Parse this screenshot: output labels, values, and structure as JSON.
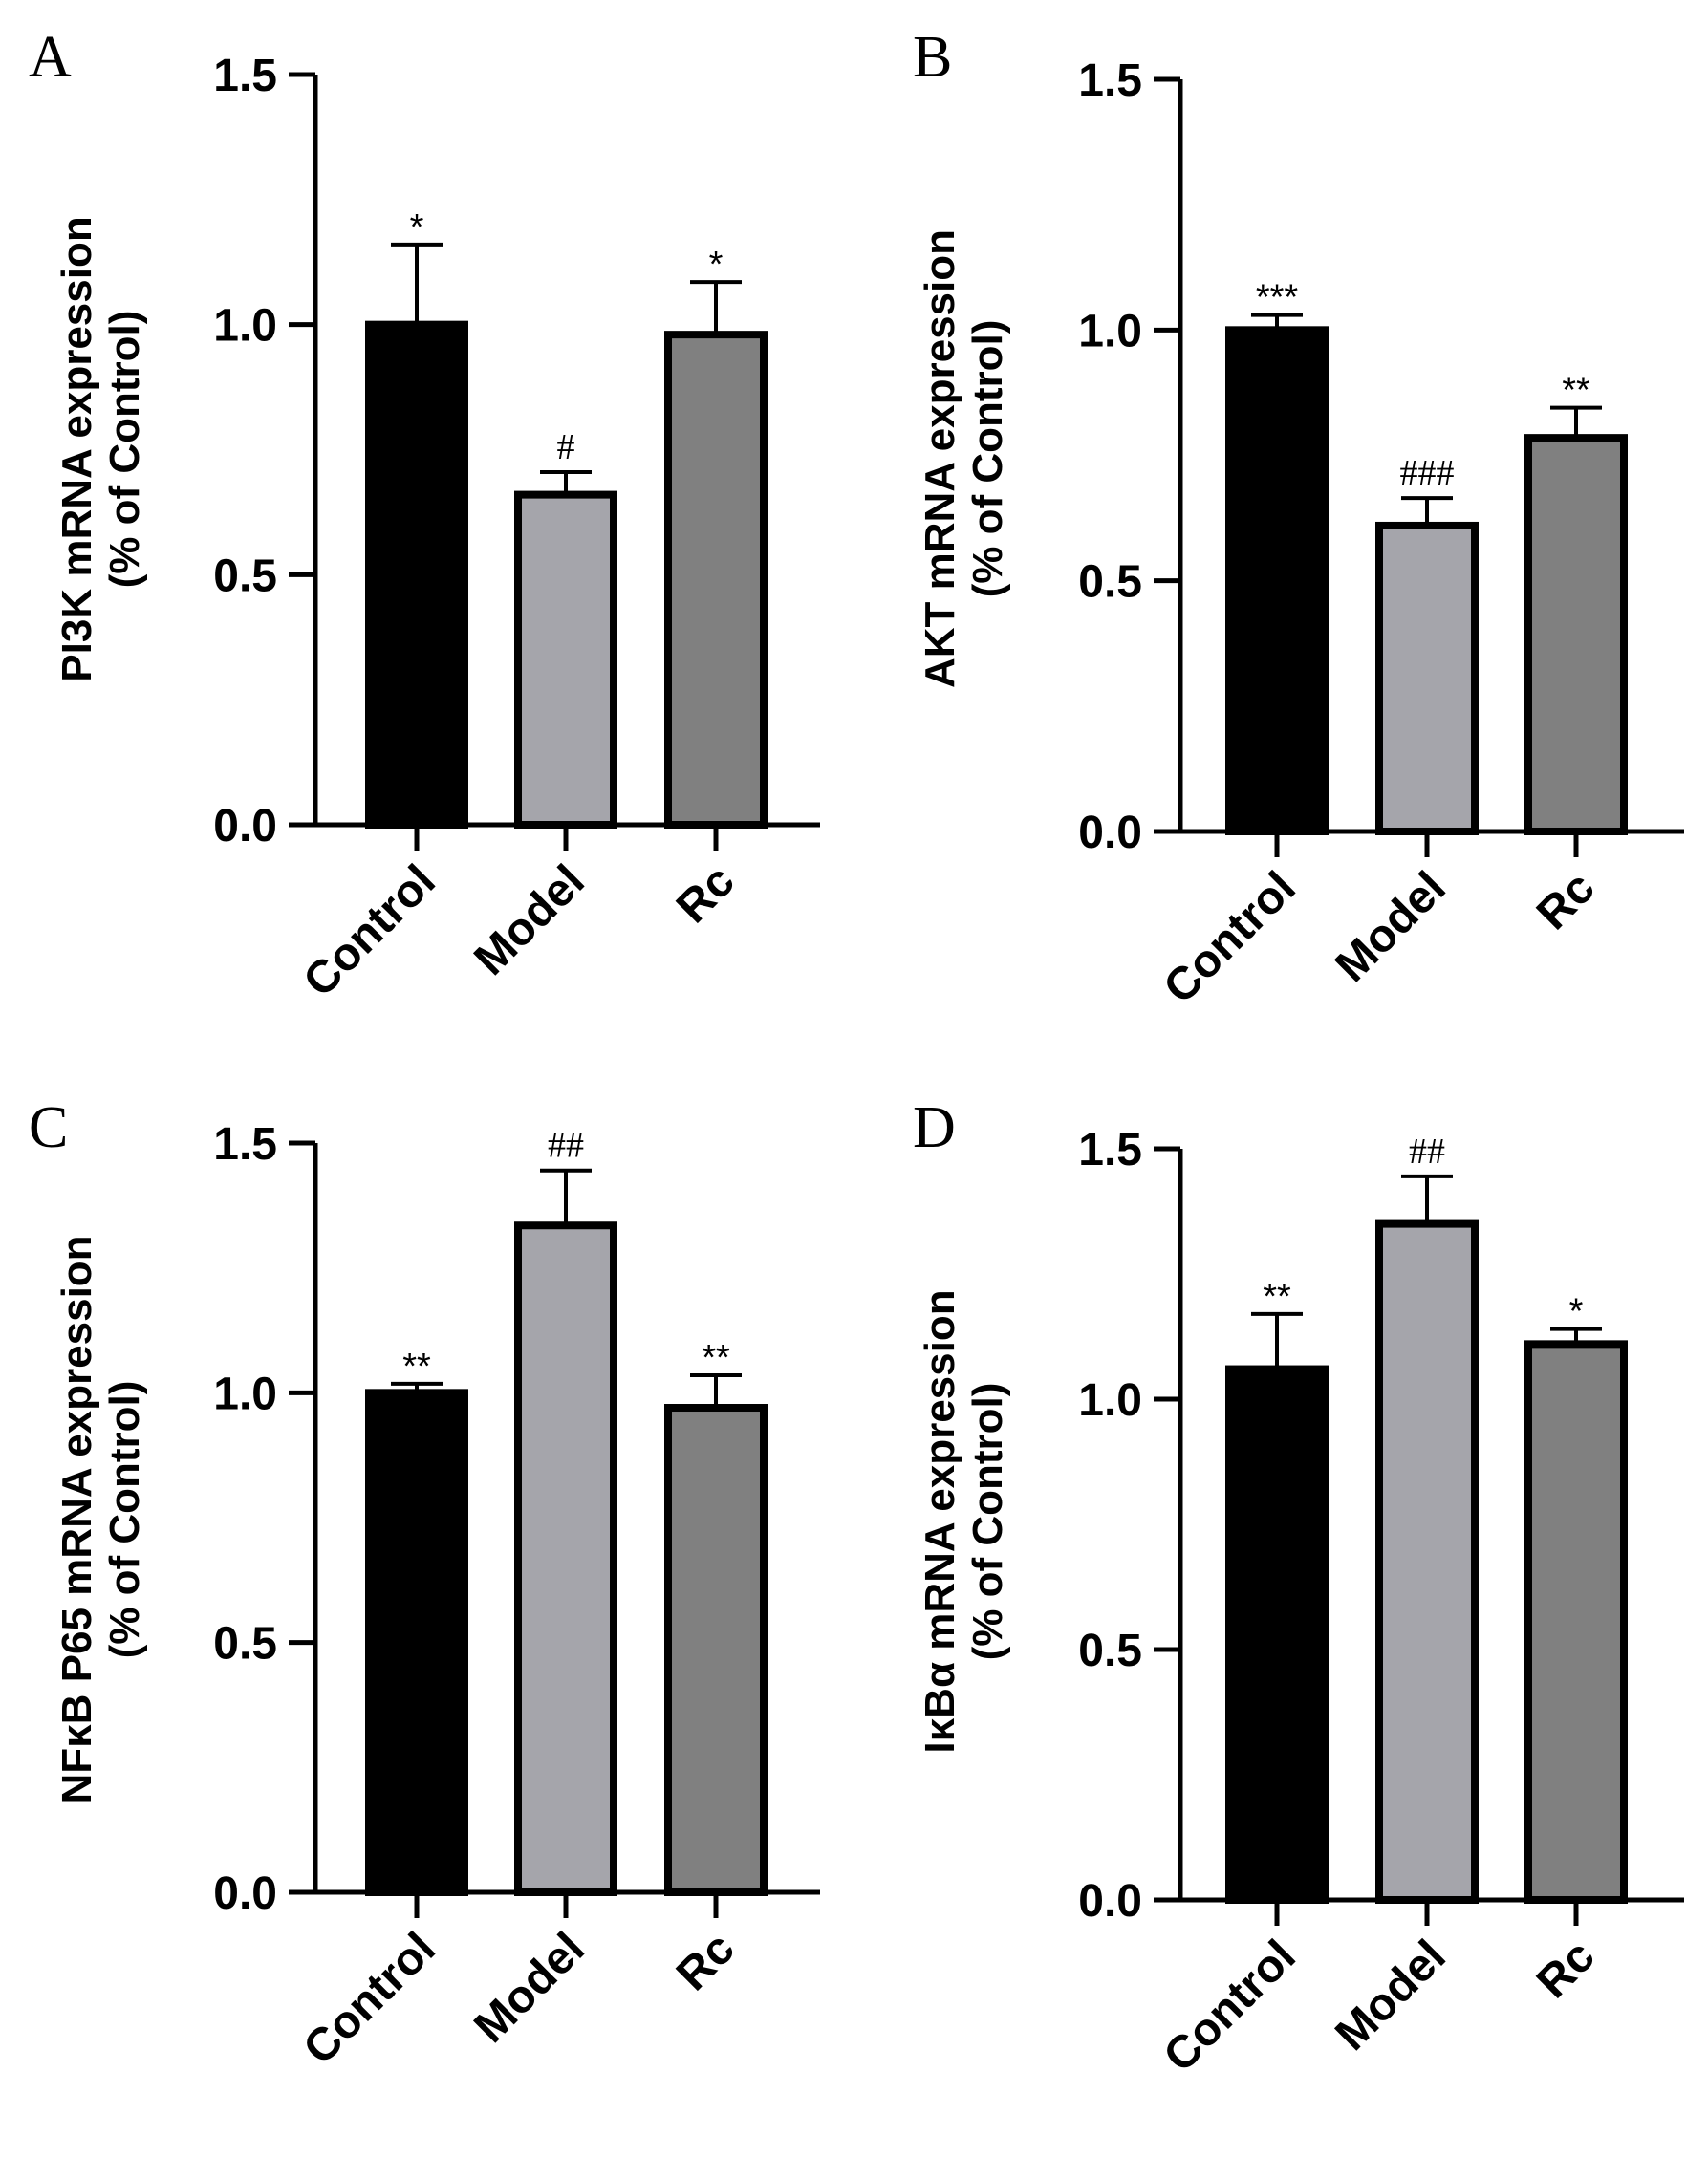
{
  "chart_data": [
    {
      "panel": "A",
      "type": "bar",
      "categories": [
        "Control",
        "Model",
        "Rc"
      ],
      "values": [
        1.0,
        0.66,
        0.98
      ],
      "errors": [
        0.16,
        0.045,
        0.105
      ],
      "annotations": [
        "*",
        "#",
        "*"
      ],
      "ylabel_line1": "PI3K mRNA expression",
      "ylabel_line2": "(% of Control)",
      "ylim": [
        0,
        1.5
      ],
      "yticks": [
        "0.0",
        "0.5",
        "1.0",
        "1.5"
      ],
      "colors": [
        "#000000",
        "#a5a5ab",
        "#808080"
      ]
    },
    {
      "panel": "B",
      "type": "bar",
      "categories": [
        "Control",
        "Model",
        "Rc"
      ],
      "values": [
        1.0,
        0.61,
        0.785
      ],
      "errors": [
        0.03,
        0.055,
        0.06
      ],
      "annotations": [
        "***",
        "###",
        "**"
      ],
      "ylabel_line1": "AKT mRNA expression",
      "ylabel_line2": "(% of Control)",
      "ylim": [
        0,
        1.5
      ],
      "yticks": [
        "0.0",
        "0.5",
        "1.0",
        "1.5"
      ],
      "colors": [
        "#000000",
        "#a5a5ab",
        "#808080"
      ]
    },
    {
      "panel": "C",
      "type": "bar",
      "categories": [
        "Control",
        "Model",
        "Rc"
      ],
      "values": [
        1.0,
        1.335,
        0.97
      ],
      "errors": [
        0.018,
        0.11,
        0.065
      ],
      "annotations": [
        "**",
        "##",
        "**"
      ],
      "ylabel_line1": "NFκB P65 mRNA expression",
      "ylabel_line2": "(% of Control)",
      "ylim": [
        0,
        1.5
      ],
      "yticks": [
        "0.0",
        "0.5",
        "1.0",
        "1.5"
      ],
      "colors": [
        "#000000",
        "#a5a5ab",
        "#808080"
      ]
    },
    {
      "panel": "D",
      "type": "bar",
      "categories": [
        "Control",
        "Model",
        "Rc"
      ],
      "values": [
        1.06,
        1.35,
        1.11
      ],
      "errors": [
        0.11,
        0.095,
        0.03
      ],
      "annotations": [
        "**",
        "##",
        "*"
      ],
      "ylabel_line1": "IκBα mRNA expression",
      "ylabel_line2": "(% of Control)",
      "ylim": [
        0,
        1.5
      ],
      "yticks": [
        "0.0",
        "0.5",
        "1.0",
        "1.5"
      ],
      "colors": [
        "#000000",
        "#a5a5ab",
        "#808080"
      ]
    }
  ]
}
